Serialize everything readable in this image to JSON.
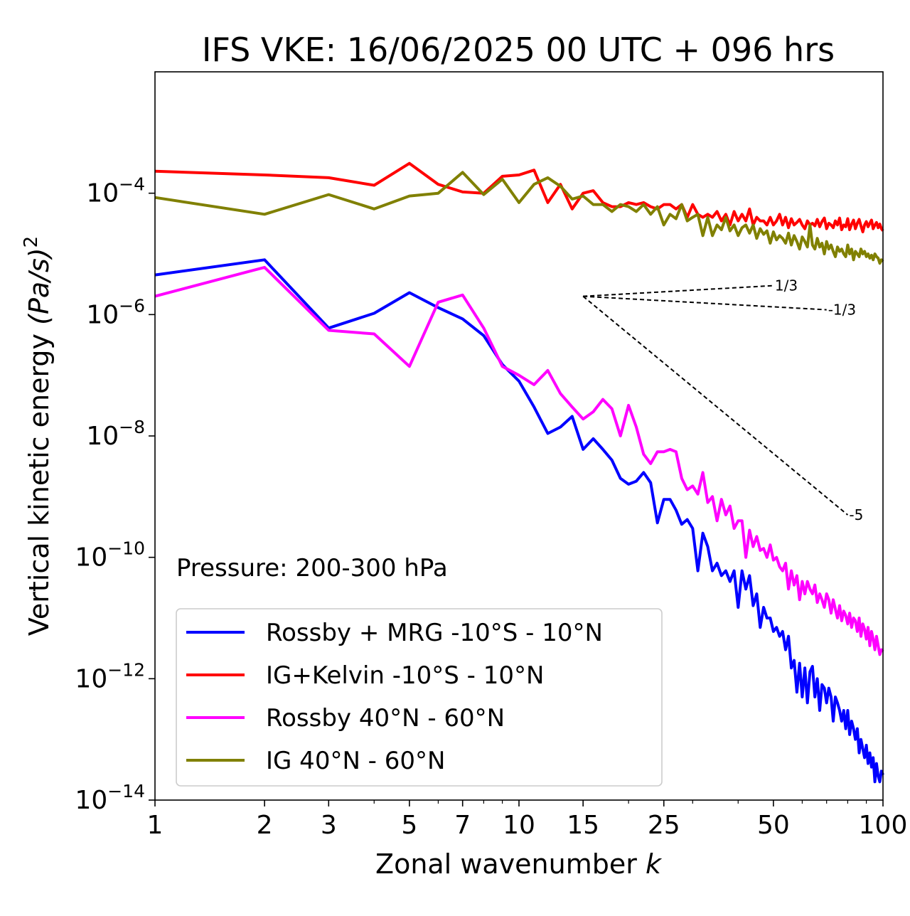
{
  "chart_data": {
    "type": "line",
    "title": "IFS VKE: 16/06/2025 00 UTC + 096 hrs",
    "xlabel": "Zonal wavenumber",
    "xlabel_var": "k",
    "ylabel": "Vertical kinetic energy",
    "ylabel_units": "(Pa/s)",
    "ylabel_exp": "2",
    "xscale": "log",
    "yscale": "log",
    "xlim": [
      1,
      100
    ],
    "ylim": [
      1e-14,
      0.01
    ],
    "xticks": [
      1,
      2,
      3,
      5,
      7,
      10,
      15,
      25,
      50,
      100
    ],
    "xtick_labels": [
      "1",
      "2",
      "3",
      "5",
      "7",
      "10",
      "15",
      "25",
      "50",
      "100"
    ],
    "yticks": [
      -14,
      -12,
      -10,
      -8,
      -6,
      -4
    ],
    "ytick_base": "10",
    "ytick_exponents": [
      "−14",
      "−12",
      "−10",
      "−8",
      "−6",
      "−4"
    ],
    "annotation": "Pressure: 200-300 hPa",
    "legend_position": "lower-left",
    "series": [
      {
        "name": "Rossby + MRG -10°S - 10°N",
        "color": "#0000ff",
        "x": [
          1,
          2,
          3,
          4,
          5,
          6,
          7,
          8,
          9,
          10,
          11,
          12,
          13,
          14,
          15,
          16,
          17,
          18,
          19,
          20,
          21,
          22,
          23,
          24,
          25,
          26,
          27,
          28,
          29,
          30,
          31,
          32,
          33,
          34,
          35,
          36,
          37,
          38,
          39,
          40,
          41,
          42,
          43,
          44,
          45,
          46,
          47,
          48,
          49,
          50,
          51,
          52,
          53,
          54,
          55,
          56,
          57,
          58,
          59,
          60,
          61,
          62,
          63,
          64,
          65,
          66,
          67,
          68,
          69,
          70,
          71,
          72,
          73,
          74,
          75,
          76,
          77,
          78,
          79,
          80,
          81,
          82,
          83,
          84,
          85,
          86,
          87,
          88,
          89,
          90,
          91,
          92,
          93,
          94,
          95,
          96,
          97,
          98,
          99,
          100
        ],
        "y": [
          4.5e-06,
          8e-06,
          6e-07,
          1.05e-06,
          2.3e-06,
          1.3e-06,
          8.5e-07,
          4.5e-07,
          1.5e-07,
          8e-08,
          3e-08,
          1.1e-08,
          1.4e-08,
          2.1e-08,
          6e-09,
          9e-09,
          6e-09,
          4e-09,
          2e-09,
          1.6e-09,
          1.8e-09,
          2.5e-09,
          1.7e-09,
          3.7e-10,
          9e-10,
          9e-10,
          6e-10,
          3.5e-10,
          4.2e-10,
          3e-10,
          6e-11,
          2.5e-10,
          1.5e-10,
          6e-11,
          8e-11,
          5e-11,
          6e-11,
          4e-11,
          6e-11,
          1.5e-11,
          6e-11,
          3e-11,
          5e-11,
          1.6e-11,
          2.5e-11,
          7e-12,
          1.5e-11,
          1e-11,
          1e-11,
          6e-12,
          7e-12,
          5e-12,
          6e-12,
          3e-12,
          5e-12,
          1.5e-12,
          2e-12,
          6e-13,
          1.8e-12,
          5e-13,
          1.5e-12,
          4e-13,
          1.3e-12,
          1.6e-12,
          5e-13,
          1e-12,
          3e-13,
          8e-13,
          7e-13,
          4e-13,
          7e-13,
          5e-13,
          2e-13,
          5e-13,
          4e-13,
          3e-13,
          2e-13,
          3e-13,
          1.5e-13,
          3e-13,
          1.2e-13,
          2e-13,
          1.5e-13,
          1e-13,
          1.5e-13,
          6e-14,
          1e-13,
          7e-14,
          5e-14,
          8e-14,
          4e-14,
          6e-14,
          3.5e-14,
          5e-14,
          2e-14,
          4e-14,
          2.5e-14,
          2e-14,
          3e-14,
          2.6e-14
        ]
      },
      {
        "name": "IG+Kelvin -10°S - 10°N",
        "color": "#ff0000",
        "x": [
          1,
          2,
          3,
          4,
          5,
          6,
          7,
          8,
          9,
          10,
          11,
          12,
          13,
          14,
          15,
          16,
          17,
          18,
          19,
          20,
          21,
          22,
          23,
          24,
          25,
          26,
          27,
          28,
          29,
          30,
          31,
          32,
          33,
          34,
          35,
          36,
          37,
          38,
          39,
          40,
          41,
          42,
          43,
          44,
          45,
          46,
          47,
          48,
          49,
          50,
          51,
          52,
          53,
          54,
          55,
          56,
          57,
          58,
          59,
          60,
          61,
          62,
          63,
          64,
          65,
          66,
          67,
          68,
          69,
          70,
          71,
          72,
          73,
          74,
          75,
          76,
          77,
          78,
          79,
          80,
          81,
          82,
          83,
          84,
          85,
          86,
          87,
          88,
          89,
          90,
          91,
          92,
          93,
          94,
          95,
          96,
          97,
          98,
          99,
          100
        ],
        "y": [
          0.00023,
          0.0002,
          0.00018,
          0.000135,
          0.00031,
          0.00014,
          0.000105,
          0.0001,
          0.00019,
          0.0002,
          0.00024,
          7e-05,
          0.00014,
          5.5e-05,
          0.0001,
          0.00011,
          7e-05,
          6e-05,
          6e-05,
          7e-05,
          6.5e-05,
          7e-05,
          6e-05,
          5.5e-05,
          6.5e-05,
          6.5e-05,
          5.5e-05,
          6.5e-05,
          4e-05,
          6.5e-05,
          4.5e-05,
          4e-05,
          4.5e-05,
          4e-05,
          5e-05,
          3.5e-05,
          4.5e-05,
          3e-05,
          5e-05,
          3.5e-05,
          4.5e-05,
          3.5e-05,
          5.5e-05,
          3e-05,
          4e-05,
          3.5e-05,
          3.5e-05,
          3e-05,
          4e-05,
          3e-05,
          3.5e-05,
          4.5e-05,
          3e-05,
          4e-05,
          2.7e-05,
          3.8e-05,
          3e-05,
          3.3e-05,
          3.7e-05,
          3e-05,
          2.6e-05,
          3.5e-05,
          3e-05,
          3.2e-05,
          2.9e-05,
          3.7e-05,
          2.8e-05,
          3.4e-05,
          3.9e-05,
          2.6e-05,
          3.2e-05,
          3e-05,
          2.7e-05,
          3.5e-05,
          3e-05,
          3.9e-05,
          2.5e-05,
          3e-05,
          2.8e-05,
          3.8e-05,
          2.5e-05,
          3.1e-05,
          3.6e-05,
          2.6e-05,
          3.2e-05,
          3.7e-05,
          2.9e-05,
          2.3e-05,
          3e-05,
          3.4e-05,
          2.8e-05,
          3.2e-05,
          3.6e-05,
          2.6e-05,
          3e-05,
          3.3e-05,
          2.7e-05,
          3.1e-05,
          2.6e-05,
          2.4e-05
        ]
      },
      {
        "name": "Rossby 40°N - 60°N",
        "color": "#ff00ff",
        "x": [
          1,
          2,
          3,
          4,
          5,
          6,
          7,
          8,
          9,
          10,
          11,
          12,
          13,
          14,
          15,
          16,
          17,
          18,
          19,
          20,
          21,
          22,
          23,
          24,
          25,
          26,
          27,
          28,
          29,
          30,
          31,
          32,
          33,
          34,
          35,
          36,
          37,
          38,
          39,
          40,
          41,
          42,
          43,
          44,
          45,
          46,
          47,
          48,
          49,
          50,
          51,
          52,
          53,
          54,
          55,
          56,
          57,
          58,
          59,
          60,
          61,
          62,
          63,
          64,
          65,
          66,
          67,
          68,
          69,
          70,
          71,
          72,
          73,
          74,
          75,
          76,
          77,
          78,
          79,
          80,
          81,
          82,
          83,
          84,
          85,
          86,
          87,
          88,
          89,
          90,
          91,
          92,
          93,
          94,
          95,
          96,
          97,
          98,
          99,
          100
        ],
        "y": [
          2e-06,
          6e-06,
          5.5e-07,
          4.8e-07,
          1.4e-07,
          1.6e-06,
          2.1e-06,
          6e-07,
          1.4e-07,
          1e-07,
          7e-08,
          1.2e-07,
          5e-08,
          3e-08,
          1.9e-08,
          2.5e-08,
          4e-08,
          2.8e-08,
          1e-08,
          3.2e-08,
          1.4e-08,
          5e-09,
          3.5e-09,
          5.5e-09,
          5.5e-09,
          6e-09,
          5.5e-09,
          2e-09,
          1.3e-09,
          1.5e-09,
          1.1e-09,
          2.5e-09,
          8e-10,
          1e-09,
          4e-10,
          9e-10,
          5e-10,
          7e-10,
          3e-10,
          4e-10,
          4e-10,
          1e-10,
          2.8e-10,
          1.5e-10,
          2.2e-10,
          1.3e-10,
          1.4e-10,
          1e-10,
          1.6e-10,
          9e-11,
          1e-10,
          7e-11,
          6e-11,
          8e-11,
          3e-11,
          6e-11,
          3.5e-11,
          5e-11,
          2e-11,
          4e-11,
          2.5e-11,
          4e-11,
          3e-11,
          2.5e-11,
          3.5e-11,
          1.8e-11,
          2.5e-11,
          2e-11,
          1.5e-11,
          2.5e-11,
          2e-11,
          1.2e-11,
          2e-11,
          1.4e-11,
          1e-11,
          1.6e-11,
          9e-12,
          1.3e-11,
          1.1e-11,
          8e-12,
          1.2e-11,
          7e-12,
          1e-11,
          9e-12,
          6e-12,
          1e-11,
          5e-12,
          8e-12,
          6.5e-12,
          4.5e-12,
          7e-12,
          3.5e-12,
          6e-12,
          4.5e-12,
          3e-12,
          5e-12,
          3.5e-12,
          2.5e-12,
          3e-12,
          2.8e-12
        ]
      },
      {
        "name": "IG 40°N - 60°N",
        "color": "#808000",
        "x": [
          1,
          2,
          3,
          4,
          5,
          6,
          7,
          8,
          9,
          10,
          11,
          12,
          13,
          14,
          15,
          16,
          17,
          18,
          19,
          20,
          21,
          22,
          23,
          24,
          25,
          26,
          27,
          28,
          29,
          30,
          31,
          32,
          33,
          34,
          35,
          36,
          37,
          38,
          39,
          40,
          41,
          42,
          43,
          44,
          45,
          46,
          47,
          48,
          49,
          50,
          51,
          52,
          53,
          54,
          55,
          56,
          57,
          58,
          59,
          60,
          61,
          62,
          63,
          64,
          65,
          66,
          67,
          68,
          69,
          70,
          71,
          72,
          73,
          74,
          75,
          76,
          77,
          78,
          79,
          80,
          81,
          82,
          83,
          84,
          85,
          86,
          87,
          88,
          89,
          90,
          91,
          92,
          93,
          94,
          95,
          96,
          97,
          98,
          99,
          100
        ],
        "y": [
          8.5e-05,
          4.5e-05,
          9.5e-05,
          5.5e-05,
          9e-05,
          0.0001,
          0.00022,
          9.5e-05,
          0.00017,
          7e-05,
          0.00014,
          0.00018,
          0.00013,
          8e-05,
          9e-05,
          6.5e-05,
          6.5e-05,
          5e-05,
          6.5e-05,
          6e-05,
          5e-05,
          6.5e-05,
          4.5e-05,
          6e-05,
          3e-05,
          4.5e-05,
          3.8e-05,
          6.5e-05,
          3.5e-05,
          4e-05,
          4.5e-05,
          2e-05,
          4e-05,
          2e-05,
          3e-05,
          2.5e-05,
          4e-05,
          2.4e-05,
          3e-05,
          2e-05,
          2.7e-05,
          3e-05,
          2.2e-05,
          3e-05,
          1.8e-05,
          2.6e-05,
          2.1e-05,
          2.4e-05,
          1.5e-05,
          2.3e-05,
          1.7e-05,
          2e-05,
          1.8e-05,
          1.5e-05,
          2.2e-05,
          1.4e-05,
          2e-05,
          1.6e-05,
          1.2e-05,
          1.9e-05,
          1.6e-05,
          1.3e-05,
          3e-05,
          1.4e-05,
          1.2e-05,
          1.8e-05,
          1.3e-05,
          1.5e-05,
          1e-05,
          1.6e-05,
          1.2e-05,
          1.4e-05,
          1.1e-05,
          9e-06,
          1.3e-05,
          1.1e-05,
          1.2e-05,
          1e-05,
          9e-06,
          1.4e-05,
          1e-05,
          1.2e-05,
          8e-06,
          1.1e-05,
          1e-05,
          9e-06,
          1.2e-05,
          1e-05,
          1.1e-05,
          9e-06,
          1e-05,
          8.5e-06,
          9.5e-06,
          8e-06,
          1e-05,
          9e-06,
          8.5e-06,
          7e-06,
          8e-06,
          7.5e-06
        ]
      }
    ],
    "reference_slopes": [
      {
        "label": "1/3",
        "slope": 0.3333,
        "x_start": 15,
        "y_start": 2e-06,
        "x_end": 50,
        "y_end": 3e-06
      },
      {
        "label": "-1/3",
        "slope": -0.3333,
        "x_start": 15,
        "y_start": 2e-06,
        "x_end": 70,
        "y_end": 1.2e-06
      },
      {
        "label": "-5",
        "slope": -5,
        "x_start": 15,
        "y_start": 2e-06,
        "x_end": 80,
        "y_end": 5e-10
      }
    ]
  }
}
